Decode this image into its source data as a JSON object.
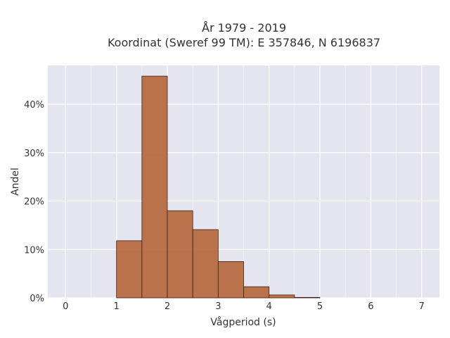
{
  "chart_data": {
    "type": "bar",
    "title_lines": [
      "År 1979 - 2019",
      "Koordinat (Sweref 99 TM): E 357846, N 6196837"
    ],
    "xlabel": "Vågperiod (s)",
    "ylabel": "Andel",
    "xlim": [
      -0.35,
      7.35
    ],
    "ylim": [
      0,
      0.48
    ],
    "grid": true,
    "x_ticks": [
      0,
      1,
      2,
      3,
      4,
      5,
      6,
      7
    ],
    "x_tick_labels": [
      "0",
      "1",
      "2",
      "3",
      "4",
      "5",
      "6",
      "7"
    ],
    "y_ticks": [
      0,
      0.1,
      0.2,
      0.3,
      0.4
    ],
    "y_tick_labels": [
      "0%",
      "10%",
      "20%",
      "30%",
      "40%"
    ],
    "bin_edges": [
      1.0,
      1.5,
      2.0,
      2.5,
      3.0,
      3.5,
      4.0,
      4.5,
      5.0
    ],
    "values": [
      0.118,
      0.458,
      0.18,
      0.141,
      0.075,
      0.023,
      0.006,
      0.001
    ],
    "bar_color": "#b5653a",
    "bar_edge_color": "#3b2214",
    "plot_background": "#e5e5f0",
    "grid_color": "#ffffff"
  }
}
